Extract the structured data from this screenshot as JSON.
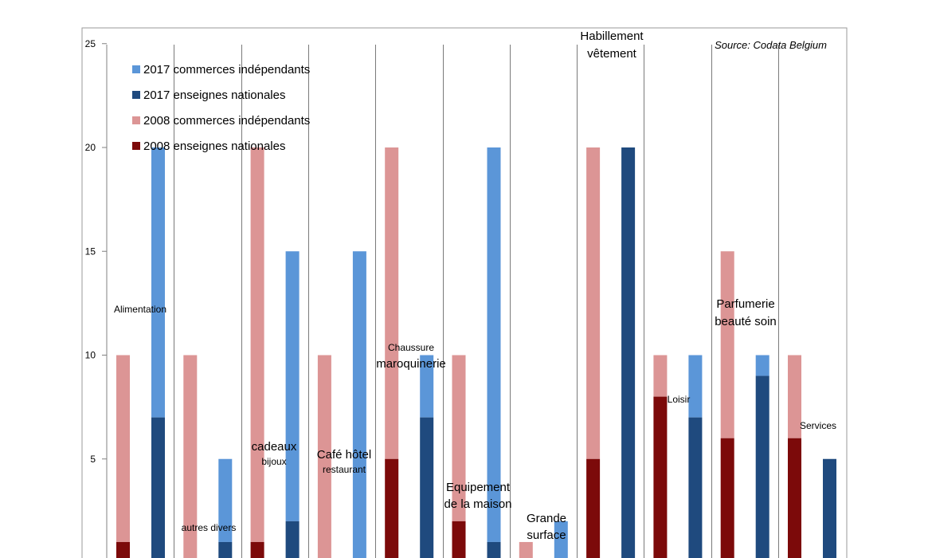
{
  "chart_data": {
    "type": "bar",
    "stacked": true,
    "source": "Source: Codata Belgium",
    "ylim": [
      0,
      25
    ],
    "yticks": [
      5,
      10,
      15,
      20,
      25
    ],
    "legend": [
      {
        "label": "2017  commerces indépendants",
        "color": "#5b96d8"
      },
      {
        "label": "2017 enseignes nationales",
        "color": "#1f4a7e"
      },
      {
        "label": "2008  commerces indépendants",
        "color": "#dc9595"
      },
      {
        "label": "2008 enseignes nationales",
        "color": "#7c0a0a"
      }
    ],
    "colors": {
      "2008_national": "#7c0a0a",
      "2008_independent": "#dc9595",
      "2017_national": "#1f4a7e",
      "2017_independent": "#5b96d8"
    },
    "categories": [
      {
        "label": [
          "Alimentation"
        ],
        "size": "small",
        "bars": [
          {
            "year": "2008",
            "national": 1,
            "total": 10
          },
          {
            "year": "2017",
            "national": 7,
            "total": 20
          }
        ]
      },
      {
        "label": [
          "autres divers"
        ],
        "size": "small",
        "bars": [
          {
            "year": "2008",
            "national": 0,
            "total": 10
          },
          {
            "year": "2017",
            "national": 1,
            "total": 5
          }
        ]
      },
      {
        "label": [
          "cadeaux",
          "bijoux"
        ],
        "size": "mixed",
        "bars": [
          {
            "year": "2008",
            "national": 1,
            "total": 20
          },
          {
            "year": "2017",
            "national": 2,
            "total": 15
          }
        ]
      },
      {
        "label": [
          "Café hôtel",
          "restaurant"
        ],
        "size": "mixed",
        "bars": [
          {
            "year": "2008",
            "national": 0,
            "total": 10
          },
          {
            "year": "2017",
            "national": 0,
            "total": 15
          }
        ]
      },
      {
        "label": [
          "Chaussure",
          "maroquinerie"
        ],
        "size": "mixed2",
        "bars": [
          {
            "year": "2008",
            "national": 5,
            "total": 20
          },
          {
            "year": "2017",
            "national": 7,
            "total": 10
          }
        ]
      },
      {
        "label": [
          "Equipement",
          "de la maison"
        ],
        "size": "large",
        "bars": [
          {
            "year": "2008",
            "national": 2,
            "total": 10
          },
          {
            "year": "2017",
            "national": 1,
            "total": 20
          }
        ]
      },
      {
        "label": [
          "Grande",
          "surface"
        ],
        "size": "large",
        "bars": [
          {
            "year": "2008",
            "national": 0,
            "total": 1
          },
          {
            "year": "2017",
            "national": 0,
            "total": 2
          }
        ]
      },
      {
        "label": [
          "Habillement",
          "vêtement"
        ],
        "size": "large",
        "bars": [
          {
            "year": "2008",
            "national": 5,
            "total": 20
          },
          {
            "year": "2017",
            "national": 20,
            "total": 20
          }
        ]
      },
      {
        "label": [
          "Loisir"
        ],
        "size": "small",
        "bars": [
          {
            "year": "2008",
            "national": 8,
            "total": 10
          },
          {
            "year": "2017",
            "national": 7,
            "total": 10
          }
        ]
      },
      {
        "label": [
          "Parfumerie",
          "beauté soin"
        ],
        "size": "large",
        "bars": [
          {
            "year": "2008",
            "national": 6,
            "total": 15
          },
          {
            "year": "2017",
            "national": 9,
            "total": 10
          }
        ]
      },
      {
        "label": [
          "Services"
        ],
        "size": "small",
        "bars": [
          {
            "year": "2008",
            "national": 6,
            "total": 10
          },
          {
            "year": "2017",
            "national": 5,
            "total": 5
          }
        ]
      }
    ]
  }
}
